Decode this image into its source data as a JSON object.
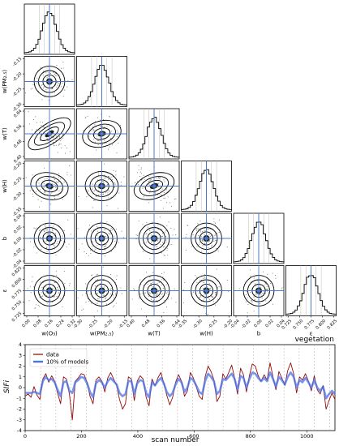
{
  "chart_data": [
    {
      "type": "scatter",
      "subtype": "corner-plot",
      "parameters": [
        {
          "label": "w(O₃)",
          "ticks": [
            "0.00",
            "0.08",
            "0.16",
            "0.24",
            "0.32"
          ],
          "range": [
            0.0,
            0.32
          ],
          "mode": 0.13
        },
        {
          "label": "w(PM₂.₅)",
          "ticks": [
            "-0.30",
            "-0.25",
            "-0.20",
            "-0.15"
          ],
          "range": [
            -0.32,
            -0.13
          ],
          "mode": -0.25
        },
        {
          "label": "w(T)",
          "ticks": [
            "0.40",
            "0.48",
            "0.56",
            "0.64"
          ],
          "range": [
            0.38,
            0.67
          ],
          "mode": 0.52
        },
        {
          "label": "w(H)",
          "ticks": [
            "-0.35",
            "-0.30",
            "-0.25",
            "-0.20"
          ],
          "range": [
            -0.37,
            -0.18
          ],
          "mode": -0.29
        },
        {
          "label": "b",
          "ticks": [
            "-0.04",
            "-0.02",
            "0.00",
            "0.02",
            "0.04"
          ],
          "range": [
            -0.05,
            0.05
          ],
          "mode": 0.0
        },
        {
          "label": "ε",
          "ticks": [
            "0.725",
            "0.750",
            "0.775",
            "0.800",
            "0.825"
          ],
          "range": [
            0.715,
            0.835
          ],
          "mode": 0.775
        }
      ],
      "row_ticks": [
        [],
        [
          "-0.15",
          "-0.20",
          "-0.25",
          "-0.30"
        ],
        [
          "0.64",
          "0.56",
          "0.48",
          "0.40"
        ],
        [
          "-0.20",
          "-0.25",
          "-0.30",
          "-0.35"
        ],
        [
          "0.04",
          "0.02",
          "0.00",
          "-0.02",
          "-0.04"
        ],
        [
          "0.825",
          "0.800",
          "0.775",
          "0.750",
          "0.725"
        ]
      ],
      "correlations": {
        "1-0": 0.0,
        "2-0": -0.75,
        "2-1": -0.35,
        "3-0": 0.3,
        "3-1": 0.1,
        "3-2": -0.45,
        "4-0": 0.0,
        "4-1": 0.0,
        "4-2": 0.0,
        "4-3": 0.0,
        "5-0": 0.0,
        "5-1": 0.0,
        "5-2": 0.0,
        "5-3": 0.0,
        "5-4": 0.0
      },
      "colors": {
        "truth_line": "#4a78c8",
        "contour": "#000000",
        "points": "#777777"
      }
    },
    {
      "type": "line",
      "title": "vegetation",
      "xlabel": "scan number",
      "ylabel": "SIFi",
      "xlim": [
        0,
        1100
      ],
      "ylim": [
        -4,
        4
      ],
      "xticks": [
        "0",
        "200",
        "400",
        "600",
        "800",
        "1000"
      ],
      "yticks": [
        "4",
        "3",
        "2",
        "1",
        "0",
        "-1",
        "-2",
        "-3",
        "-4"
      ],
      "legend_position": "top-left",
      "series": [
        {
          "name": "data",
          "color": "#8b0000",
          "values": [
            -0.8,
            -0.6,
            -0.9,
            0.1,
            -0.7,
            -1.1,
            0.8,
            1.3,
            0.5,
            1.1,
            0.6,
            -0.5,
            -1.5,
            1.0,
            0.8,
            -0.6,
            -3.0,
            0.6,
            0.9,
            1.3,
            1.2,
            0.5,
            -0.8,
            -1.5,
            0.7,
            1.0,
            0.6,
            -0.4,
            0.9,
            1.4,
            0.8,
            0.2,
            -1.1,
            -2.0,
            -1.5,
            1.0,
            0.8,
            -1.2,
            0.6,
            1.1,
            0.8,
            -0.9,
            -1.7,
            0.8,
            0.2,
            0.9,
            1.4,
            0.4,
            -0.7,
            -1.6,
            -0.9,
            0.5,
            1.2,
            0.6,
            -0.8,
            -0.3,
            1.4,
            0.9,
            0.1,
            -0.8,
            -1.1,
            1.0,
            2.0,
            1.5,
            0.7,
            -1.3,
            -0.8,
            1.3,
            0.8,
            1.4,
            2.1,
            0.9,
            -0.6,
            1.8,
            1.2,
            -0.4,
            1.1,
            2.2,
            2.0,
            1.1,
            0.6,
            1.2,
            0.7,
            2.3,
            1.0,
            -0.2,
            1.5,
            0.9,
            0.2,
            1.6,
            2.3,
            1.3,
            -0.5,
            1.0,
            0.7,
            1.3,
            0.6,
            -0.3,
            1.1,
            -0.2,
            -0.6,
            0.2,
            -2.0,
            -1.2,
            -0.5,
            -1.1
          ]
        },
        {
          "name": "10% of models",
          "color": "#4b72e8",
          "values": [
            -0.5,
            -0.5,
            -0.5,
            -0.4,
            -0.5,
            -0.6,
            0.6,
            1.0,
            0.7,
            0.8,
            0.5,
            -0.2,
            -0.8,
            0.5,
            0.6,
            -0.3,
            -0.5,
            0.5,
            0.7,
            1.0,
            0.9,
            0.4,
            -0.4,
            -0.9,
            0.4,
            0.7,
            0.5,
            0.0,
            0.6,
            0.9,
            0.6,
            0.3,
            -0.5,
            -0.8,
            -0.6,
            0.6,
            0.6,
            -0.6,
            0.4,
            0.7,
            0.6,
            -0.5,
            -0.9,
            0.5,
            0.2,
            0.6,
            0.9,
            0.4,
            -0.4,
            -0.8,
            -0.5,
            0.3,
            0.8,
            0.5,
            -0.4,
            0.0,
            0.9,
            0.7,
            0.2,
            -0.4,
            -0.6,
            0.6,
            1.3,
            1.0,
            0.6,
            -0.6,
            -0.3,
            0.8,
            0.7,
            1.0,
            1.3,
            0.8,
            -0.2,
            1.1,
            0.9,
            0.0,
            0.8,
            1.4,
            1.3,
            0.9,
            0.6,
            0.9,
            0.6,
            1.4,
            0.8,
            0.1,
            1.0,
            0.7,
            0.3,
            1.0,
            1.4,
            1.0,
            0.0,
            0.7,
            0.5,
            0.9,
            0.5,
            0.0,
            0.7,
            0.0,
            -0.3,
            0.1,
            -1.0,
            -0.6,
            -0.3,
            -0.6
          ]
        }
      ]
    }
  ]
}
